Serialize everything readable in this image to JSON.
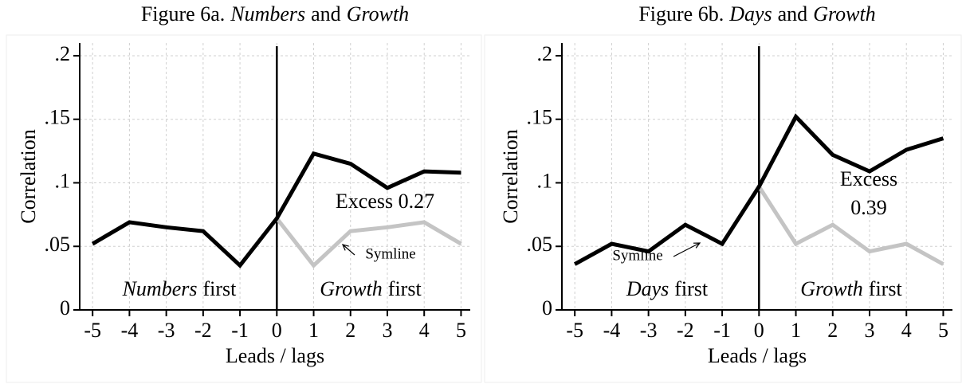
{
  "chart_data": [
    {
      "type": "line",
      "title": [
        "Figure 6a.",
        "Numbers",
        "and",
        "Growth"
      ],
      "x_label": "Leads / lags",
      "y_label": "Correlation",
      "x": [
        -5,
        -4,
        -3,
        -2,
        -1,
        0,
        1,
        2,
        3,
        4,
        5
      ],
      "series": [
        {
          "color": "#000000",
          "values": [
            0.052,
            0.069,
            0.065,
            0.062,
            0.035,
            0.072,
            0.123,
            0.115,
            0.096,
            0.109,
            0.108
          ]
        },
        {
          "color": "#c4c4c4",
          "values": [
            null,
            null,
            null,
            null,
            null,
            0.072,
            0.035,
            0.062,
            0.065,
            0.069,
            0.052
          ]
        }
      ],
      "xlim": [
        -5.35,
        5.25
      ],
      "ylim": [
        0,
        0.21
      ],
      "xticks": [
        -5,
        -4,
        -3,
        -2,
        -1,
        0,
        1,
        2,
        3,
        4,
        5
      ],
      "yticks": [
        {
          "value": 0,
          "label": "0"
        },
        {
          "value": 0.05,
          "label": ".05"
        },
        {
          "value": 0.1,
          "label": ".1"
        },
        {
          "value": 0.15,
          "label": ".15"
        },
        {
          "value": 0.2,
          "label": ".2"
        }
      ],
      "grid": true,
      "vline": 0,
      "region_labels": [
        [
          "Numbers",
          "first"
        ],
        [
          "Growth",
          "first"
        ]
      ],
      "excess": [
        "Excess 0.27"
      ],
      "symline": "Symline"
    },
    {
      "type": "line",
      "title": [
        "Figure 6b.",
        "Days",
        "and",
        "Growth"
      ],
      "x_label": "Leads / lags",
      "y_label": "Correlation",
      "x": [
        -5,
        -4,
        -3,
        -2,
        -1,
        0,
        1,
        2,
        3,
        4,
        5
      ],
      "series": [
        {
          "color": "#000000",
          "values": [
            0.036,
            0.052,
            0.046,
            0.067,
            0.052,
            0.097,
            0.152,
            0.122,
            0.109,
            0.126,
            0.135
          ]
        },
        {
          "color": "#c4c4c4",
          "values": [
            null,
            null,
            null,
            null,
            null,
            0.097,
            0.052,
            0.067,
            0.046,
            0.052,
            0.036
          ]
        }
      ],
      "xlim": [
        -5.35,
        5.25
      ],
      "ylim": [
        0,
        0.21
      ],
      "xticks": [
        -5,
        -4,
        -3,
        -2,
        -1,
        0,
        1,
        2,
        3,
        4,
        5
      ],
      "yticks": [
        {
          "value": 0,
          "label": "0"
        },
        {
          "value": 0.05,
          "label": ".05"
        },
        {
          "value": 0.1,
          "label": ".1"
        },
        {
          "value": 0.15,
          "label": ".15"
        },
        {
          "value": 0.2,
          "label": ".2"
        }
      ],
      "grid": true,
      "vline": 0,
      "region_labels": [
        [
          "Days",
          "first"
        ],
        [
          "Growth",
          "first"
        ]
      ],
      "excess": [
        "Excess",
        "0.39"
      ],
      "symline": "Symline"
    }
  ]
}
